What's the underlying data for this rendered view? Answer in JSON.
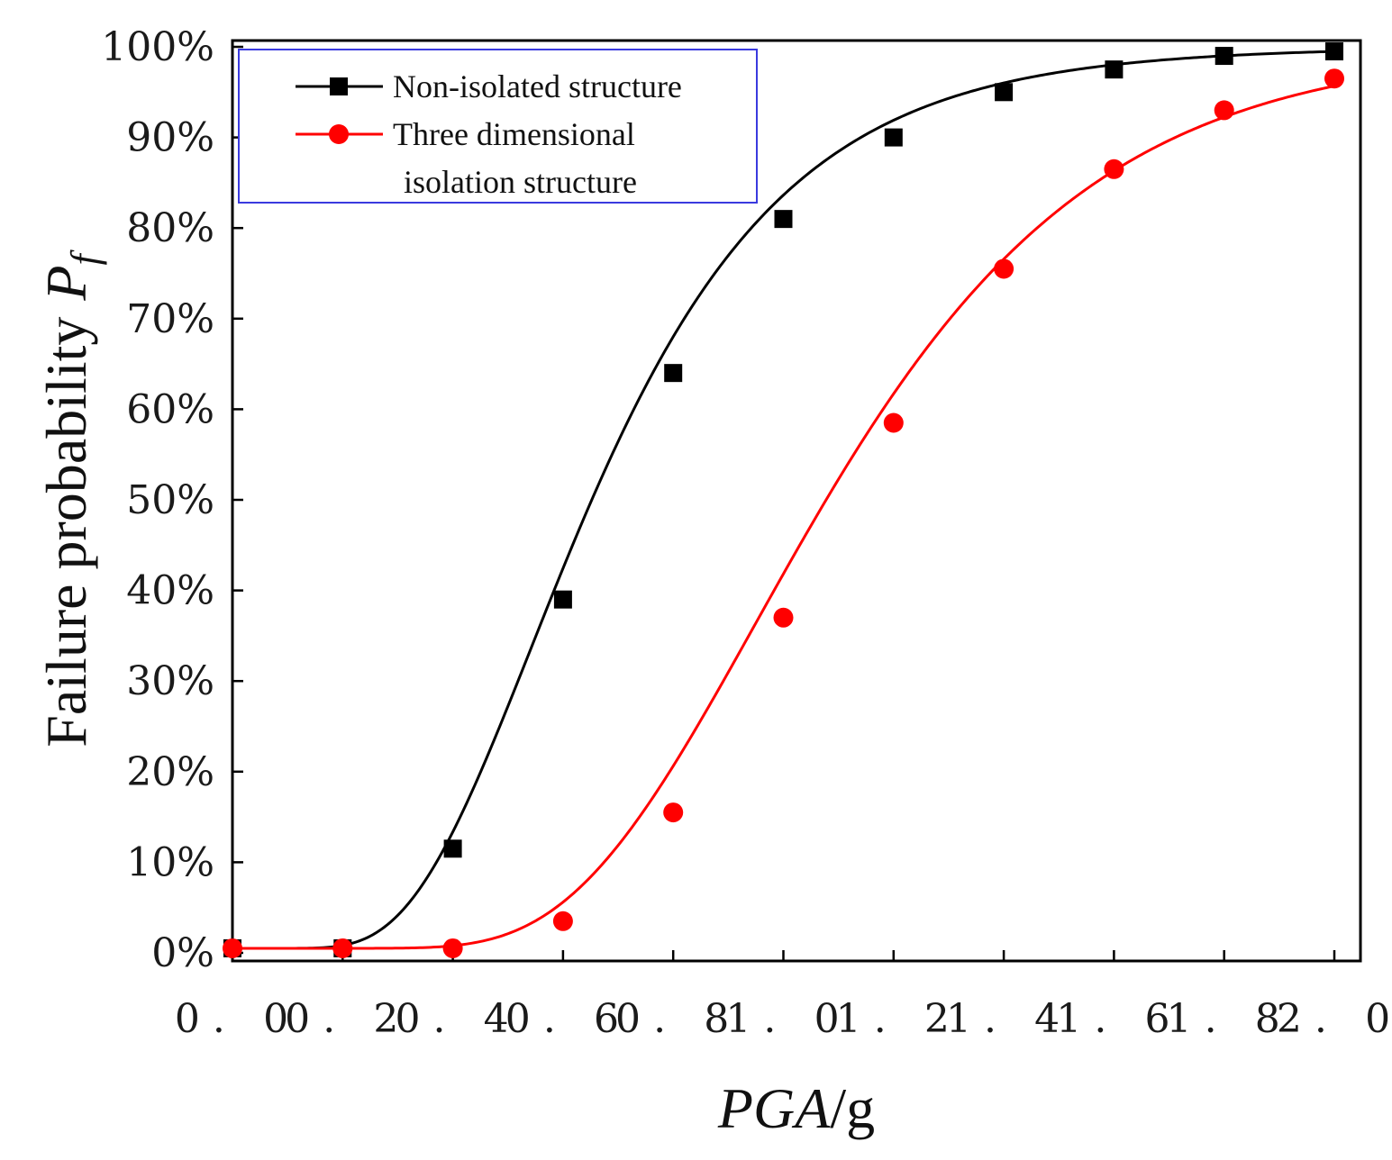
{
  "chart_data": {
    "type": "line",
    "title": "",
    "xlabel": {
      "italic": "PGA",
      "plain": "/g"
    },
    "ylabel": {
      "text": "Failure probability",
      "symbol": "P",
      "subscript": "f"
    },
    "xlim": [
      0,
      2.0
    ],
    "ylim": [
      0,
      100
    ],
    "x_ticks": [
      0,
      0.2,
      0.4,
      0.6,
      0.8,
      1.0,
      1.2,
      1.4,
      1.6,
      1.8,
      2.0
    ],
    "x_tick_labels": [
      "0. 0",
      "0. 2",
      "0. 4",
      "0. 6",
      "0. 8",
      "1. 0",
      "1. 2",
      "1. 4",
      "1. 6",
      "1. 8",
      "2. 0"
    ],
    "y_ticks": [
      0,
      10,
      20,
      30,
      40,
      50,
      60,
      70,
      80,
      90,
      100
    ],
    "y_tick_labels": [
      "0%",
      "10%",
      "20%",
      "30%",
      "40%",
      "50%",
      "60%",
      "70%",
      "80%",
      "90%",
      "100%"
    ],
    "grid": false,
    "legend_position": "top-left",
    "legend_colors": {
      "border": "#3a3adf"
    },
    "x": [
      0,
      0.2,
      0.4,
      0.6,
      0.8,
      1.0,
      1.2,
      1.4,
      1.6,
      1.8,
      2.0
    ],
    "series": [
      {
        "name": "Non-isolated structure",
        "legend_lines": [
          "Non-isolated structure"
        ],
        "color": "#000000",
        "marker": "square",
        "values": [
          0.5,
          0.5,
          11.5,
          39,
          64,
          81,
          90,
          95,
          97.5,
          99,
          99.5
        ],
        "fit": {
          "median": 0.654,
          "beta": 0.435
        }
      },
      {
        "name": "Three dimensional isolation structure",
        "legend_lines": [
          "Three dimensional",
          "isolation structure"
        ],
        "color": "#ff0000",
        "marker": "circle",
        "values": [
          0.5,
          0.5,
          0.5,
          3.5,
          15.5,
          37,
          58.5,
          75.5,
          86.5,
          93,
          96.5
        ],
        "fit": {
          "median": 1.08,
          "beta": 0.36
        }
      }
    ]
  }
}
